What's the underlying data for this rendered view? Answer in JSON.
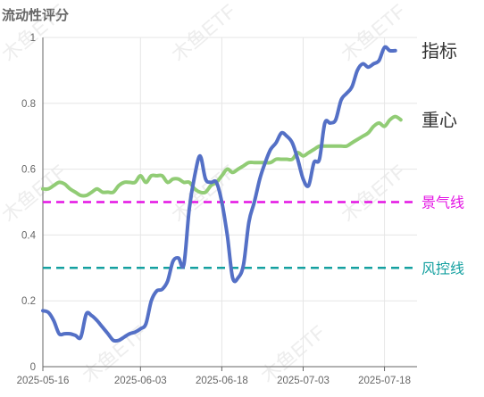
{
  "chart_data": {
    "type": "line",
    "title": "流动性评分",
    "watermark": "木鱼ETF",
    "xlabel": "",
    "ylabel": "",
    "x_ticks": [
      "2025-05-16",
      "2025-06-03",
      "2025-06-18",
      "2025-07-03",
      "2025-07-18"
    ],
    "y_ticks": [
      "0",
      "0.2",
      "0.4",
      "0.6",
      "0.8",
      "1"
    ],
    "ylim": [
      0,
      1
    ],
    "xlim": [
      "2025-05-16",
      "2025-07-24"
    ],
    "grid": true,
    "series": [
      {
        "name": "指标",
        "color": "#5470c6",
        "points": [
          [
            "2025-05-16",
            0.17
          ],
          [
            "2025-05-17",
            0.165
          ],
          [
            "2025-05-18",
            0.14
          ],
          [
            "2025-05-19",
            0.1
          ],
          [
            "2025-05-20",
            0.1
          ],
          [
            "2025-05-21",
            0.1
          ],
          [
            "2025-05-22",
            0.095
          ],
          [
            "2025-05-23",
            0.09
          ],
          [
            "2025-05-24",
            0.16
          ],
          [
            "2025-05-25",
            0.155
          ],
          [
            "2025-05-26",
            0.14
          ],
          [
            "2025-05-27",
            0.12
          ],
          [
            "2025-05-28",
            0.1
          ],
          [
            "2025-05-29",
            0.08
          ],
          [
            "2025-05-30",
            0.08
          ],
          [
            "2025-05-31",
            0.09
          ],
          [
            "2025-06-01",
            0.1
          ],
          [
            "2025-06-02",
            0.105
          ],
          [
            "2025-06-03",
            0.115
          ],
          [
            "2025-06-04",
            0.13
          ],
          [
            "2025-06-05",
            0.2
          ],
          [
            "2025-06-06",
            0.23
          ],
          [
            "2025-06-07",
            0.235
          ],
          [
            "2025-06-08",
            0.26
          ],
          [
            "2025-06-09",
            0.32
          ],
          [
            "2025-06-10",
            0.33
          ],
          [
            "2025-06-11",
            0.31
          ],
          [
            "2025-06-12",
            0.48
          ],
          [
            "2025-06-13",
            0.58
          ],
          [
            "2025-06-14",
            0.64
          ],
          [
            "2025-06-15",
            0.57
          ],
          [
            "2025-06-16",
            0.56
          ],
          [
            "2025-06-17",
            0.56
          ],
          [
            "2025-06-18",
            0.5
          ],
          [
            "2025-06-19",
            0.4
          ],
          [
            "2025-06-20",
            0.27
          ],
          [
            "2025-06-21",
            0.27
          ],
          [
            "2025-06-22",
            0.31
          ],
          [
            "2025-06-23",
            0.44
          ],
          [
            "2025-06-24",
            0.5
          ],
          [
            "2025-06-25",
            0.57
          ],
          [
            "2025-06-26",
            0.62
          ],
          [
            "2025-06-27",
            0.66
          ],
          [
            "2025-06-28",
            0.68
          ],
          [
            "2025-06-29",
            0.71
          ],
          [
            "2025-06-30",
            0.7
          ],
          [
            "2025-07-01",
            0.68
          ],
          [
            "2025-07-02",
            0.63
          ],
          [
            "2025-07-03",
            0.57
          ],
          [
            "2025-07-04",
            0.55
          ],
          [
            "2025-07-05",
            0.62
          ],
          [
            "2025-07-06",
            0.63
          ],
          [
            "2025-07-07",
            0.74
          ],
          [
            "2025-07-08",
            0.74
          ],
          [
            "2025-07-09",
            0.75
          ],
          [
            "2025-07-10",
            0.81
          ],
          [
            "2025-07-11",
            0.83
          ],
          [
            "2025-07-12",
            0.85
          ],
          [
            "2025-07-13",
            0.9
          ],
          [
            "2025-07-14",
            0.92
          ],
          [
            "2025-07-15",
            0.91
          ],
          [
            "2025-07-16",
            0.92
          ],
          [
            "2025-07-17",
            0.93
          ],
          [
            "2025-07-18",
            0.97
          ],
          [
            "2025-07-19",
            0.96
          ],
          [
            "2025-07-20",
            0.96
          ]
        ]
      },
      {
        "name": "重心",
        "color": "#91cc75",
        "points": [
          [
            "2025-05-16",
            0.54
          ],
          [
            "2025-05-17",
            0.54
          ],
          [
            "2025-05-18",
            0.55
          ],
          [
            "2025-05-19",
            0.56
          ],
          [
            "2025-05-20",
            0.555
          ],
          [
            "2025-05-21",
            0.54
          ],
          [
            "2025-05-22",
            0.53
          ],
          [
            "2025-05-23",
            0.52
          ],
          [
            "2025-05-24",
            0.52
          ],
          [
            "2025-05-25",
            0.53
          ],
          [
            "2025-05-26",
            0.54
          ],
          [
            "2025-05-27",
            0.53
          ],
          [
            "2025-05-28",
            0.53
          ],
          [
            "2025-05-29",
            0.53
          ],
          [
            "2025-05-30",
            0.55
          ],
          [
            "2025-05-31",
            0.56
          ],
          [
            "2025-06-01",
            0.56
          ],
          [
            "2025-06-02",
            0.56
          ],
          [
            "2025-06-03",
            0.58
          ],
          [
            "2025-06-04",
            0.56
          ],
          [
            "2025-06-05",
            0.58
          ],
          [
            "2025-06-06",
            0.58
          ],
          [
            "2025-06-07",
            0.58
          ],
          [
            "2025-06-08",
            0.56
          ],
          [
            "2025-06-09",
            0.57
          ],
          [
            "2025-06-10",
            0.57
          ],
          [
            "2025-06-11",
            0.56
          ],
          [
            "2025-06-12",
            0.56
          ],
          [
            "2025-06-13",
            0.54
          ],
          [
            "2025-06-14",
            0.53
          ],
          [
            "2025-06-15",
            0.53
          ],
          [
            "2025-06-16",
            0.55
          ],
          [
            "2025-06-17",
            0.56
          ],
          [
            "2025-06-18",
            0.58
          ],
          [
            "2025-06-19",
            0.6
          ],
          [
            "2025-06-20",
            0.59
          ],
          [
            "2025-06-21",
            0.6
          ],
          [
            "2025-06-22",
            0.61
          ],
          [
            "2025-06-23",
            0.62
          ],
          [
            "2025-06-24",
            0.62
          ],
          [
            "2025-06-25",
            0.62
          ],
          [
            "2025-06-26",
            0.62
          ],
          [
            "2025-06-27",
            0.62
          ],
          [
            "2025-06-28",
            0.63
          ],
          [
            "2025-06-29",
            0.63
          ],
          [
            "2025-06-30",
            0.63
          ],
          [
            "2025-07-01",
            0.63
          ],
          [
            "2025-07-02",
            0.65
          ],
          [
            "2025-07-03",
            0.64
          ],
          [
            "2025-07-04",
            0.65
          ],
          [
            "2025-07-05",
            0.66
          ],
          [
            "2025-07-06",
            0.67
          ],
          [
            "2025-07-07",
            0.67
          ],
          [
            "2025-07-08",
            0.67
          ],
          [
            "2025-07-09",
            0.67
          ],
          [
            "2025-07-10",
            0.67
          ],
          [
            "2025-07-11",
            0.67
          ],
          [
            "2025-07-12",
            0.68
          ],
          [
            "2025-07-13",
            0.69
          ],
          [
            "2025-07-14",
            0.7
          ],
          [
            "2025-07-15",
            0.71
          ],
          [
            "2025-07-16",
            0.73
          ],
          [
            "2025-07-17",
            0.74
          ],
          [
            "2025-07-18",
            0.73
          ],
          [
            "2025-07-19",
            0.75
          ],
          [
            "2025-07-20",
            0.76
          ],
          [
            "2025-07-21",
            0.75
          ]
        ]
      }
    ],
    "reference_lines": [
      {
        "name": "景气线",
        "value": 0.5,
        "color": "#e413e4",
        "style": "dashed"
      },
      {
        "name": "风控线",
        "value": 0.3,
        "color": "#14a0a0",
        "style": "dashed"
      }
    ]
  }
}
